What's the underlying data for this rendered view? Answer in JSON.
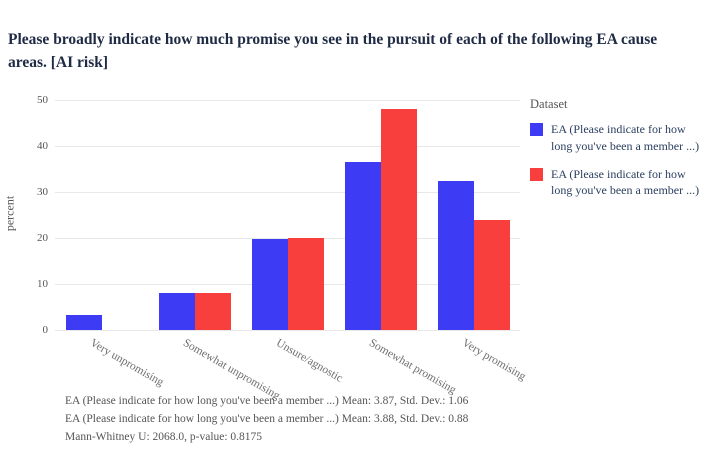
{
  "title": "Please broadly indicate how much promise you see in the pursuit of each of the following EA cause areas. [AI risk]",
  "chart_data": {
    "type": "bar",
    "categories": [
      "Very unpromising",
      "Somewhat unpromising",
      "Unsure/agnostic",
      "Somewhat promising",
      "Very promising"
    ],
    "series": [
      {
        "name": "EA (Please indicate for how long you've been a member ...)",
        "color": "#3d3bf3",
        "values": [
          3.2,
          8,
          19.8,
          36.5,
          32.3
        ]
      },
      {
        "name": "EA (Please indicate for how long you've been a member ...)",
        "color": "#f93e3e",
        "values": [
          0,
          8,
          20,
          48,
          24
        ]
      }
    ],
    "xlabel": "",
    "ylabel": "percent",
    "ylim": [
      0,
      50
    ],
    "yticks": [
      0,
      10,
      20,
      30,
      40,
      50
    ],
    "grid": true,
    "legend_title": "Dataset",
    "legend_position": "right"
  },
  "annotations": [
    "EA (Please indicate for how long you've been a member ...) Mean: 3.87, Std. Dev.: 1.06",
    "EA (Please indicate for how long you've been a member ...) Mean: 3.88, Std. Dev.: 0.88",
    "Mann-Whitney U: 2068.0, p-value: 0.8175"
  ]
}
